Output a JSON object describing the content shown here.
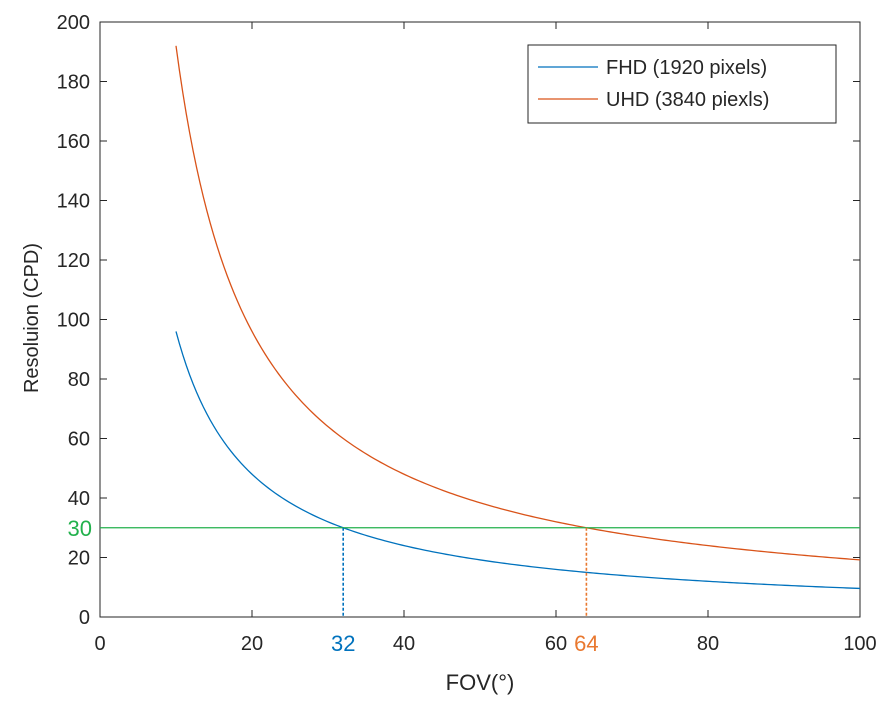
{
  "chart_data": {
    "type": "line",
    "xlabel": "FOV(°)",
    "ylabel": "Resoluion (CPD)",
    "xlim": [
      0,
      100
    ],
    "ylim": [
      0,
      200
    ],
    "x_ticks": [
      "0",
      "20",
      "40",
      "60",
      "80",
      "100"
    ],
    "y_ticks": [
      "0",
      "20",
      "40",
      "60",
      "80",
      "100",
      "120",
      "140",
      "160",
      "180",
      "200"
    ],
    "grid": false,
    "legend_position": "top-right",
    "series": [
      {
        "name": "FHD (1920 pixels)",
        "color": "#0072BD",
        "pixels": 1920,
        "x_start": 10,
        "x_end": 100
      },
      {
        "name": "UHD (3840 piexls)",
        "color": "#D95319",
        "pixels": 3840,
        "x_start": 10,
        "x_end": 100
      }
    ],
    "reference_line": {
      "y": 30,
      "label": "30",
      "color": "#22B14C"
    },
    "annotations": [
      {
        "x": 32,
        "y": 30,
        "label": "32",
        "color": "#0072BD"
      },
      {
        "x": 64,
        "y": 30,
        "label": "64",
        "color": "#E9782F"
      }
    ]
  }
}
